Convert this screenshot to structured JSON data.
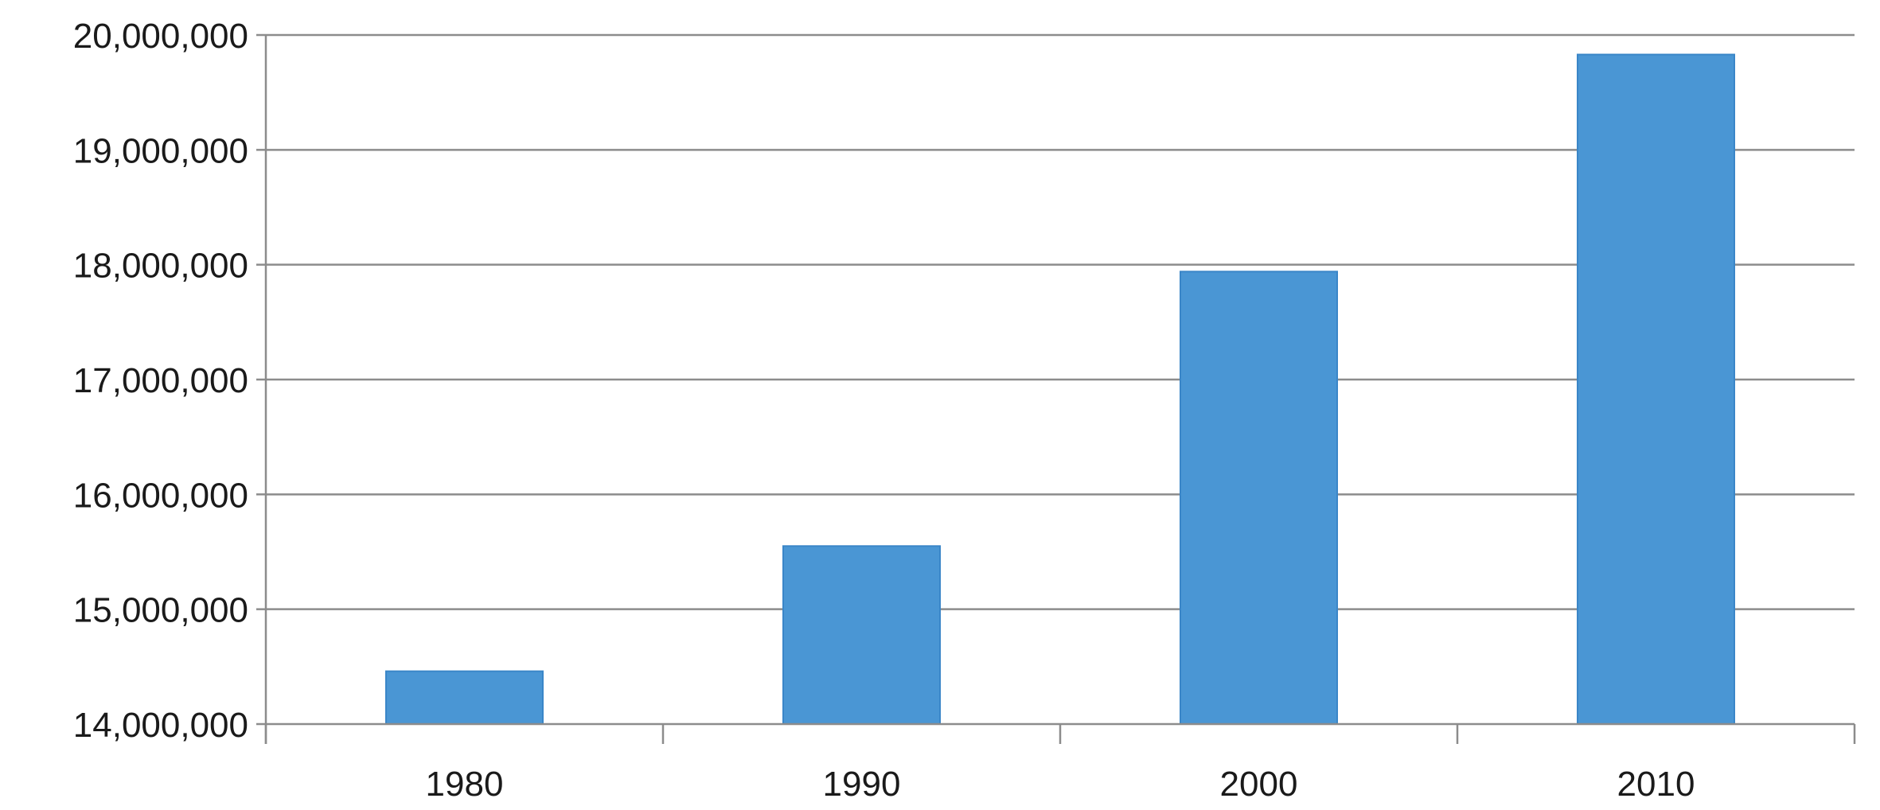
{
  "chart_data": {
    "type": "bar",
    "title": "",
    "xlabel": "",
    "ylabel": "",
    "categories": [
      "1980",
      "1990",
      "2000",
      "2010"
    ],
    "values": [
      14460000,
      15550000,
      17940000,
      19830000
    ],
    "ylim": [
      14000000,
      20000000
    ],
    "yticks": [
      14000000,
      15000000,
      16000000,
      17000000,
      18000000,
      19000000,
      20000000
    ],
    "ytick_labels": [
      "14,000,000",
      "15,000,000",
      "16,000,000",
      "17,000,000",
      "18,000,000",
      "19,000,000",
      "20,000,000"
    ],
    "grid": true,
    "legend": "none",
    "bar_color": "#4a96d4",
    "grid_color": "#8c8c8c"
  }
}
